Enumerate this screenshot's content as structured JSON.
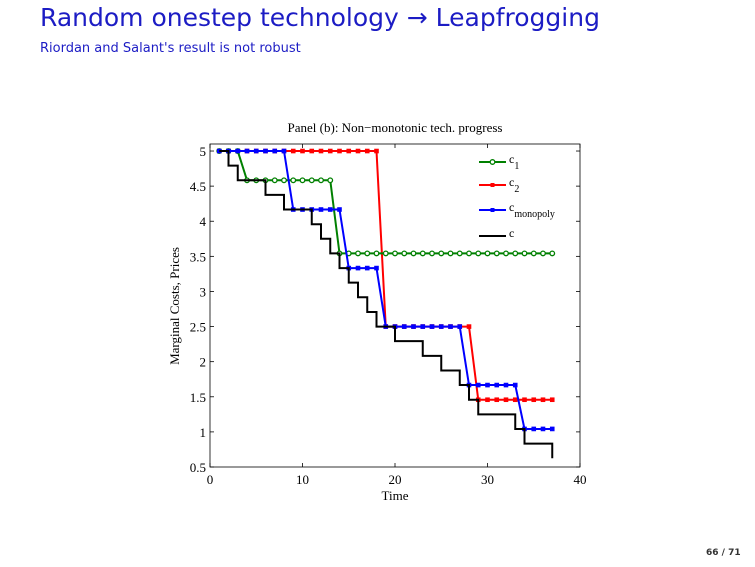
{
  "slide": {
    "title": "Random onestep technology → Leapfrogging",
    "subtitle": "Riordan and Salant's result is not robust",
    "page_number": "66 / 71"
  },
  "chart_data": {
    "type": "line",
    "title": "Panel (b): Non−monotonic tech. progress",
    "xlabel": "Time",
    "ylabel": "Marginal Costs, Prices",
    "xlim": [
      0,
      40
    ],
    "ylim": [
      0.5,
      5.1
    ],
    "xticks": [
      0,
      10,
      20,
      30,
      40
    ],
    "xtick_labels": [
      "0",
      "10",
      "20",
      "30",
      "40"
    ],
    "yticks": [
      0.5,
      1,
      1.5,
      2,
      2.5,
      3,
      3.5,
      4,
      4.5,
      5
    ],
    "ytick_labels": [
      "0.5",
      "1",
      "1.5",
      "2",
      "2.5",
      "3",
      "3.5",
      "4",
      "4.5",
      "5"
    ],
    "grid": false,
    "legend_position": "top-right",
    "x": [
      1,
      2,
      3,
      4,
      5,
      6,
      7,
      8,
      9,
      10,
      11,
      12,
      13,
      14,
      15,
      16,
      17,
      18,
      19,
      20,
      21,
      22,
      23,
      24,
      25,
      26,
      27,
      28,
      29,
      30,
      31,
      32,
      33,
      34,
      35,
      36,
      37
    ],
    "series": [
      {
        "name": "c1",
        "label_main": "c",
        "label_sub": "1",
        "color": "#008000",
        "marker": "circle",
        "style": "line",
        "values": [
          5,
          5,
          5,
          4.583,
          4.583,
          4.583,
          4.583,
          4.583,
          4.583,
          4.583,
          4.583,
          4.583,
          4.583,
          3.542,
          3.542,
          3.542,
          3.542,
          3.542,
          3.542,
          3.542,
          3.542,
          3.542,
          3.542,
          3.542,
          3.542,
          3.542,
          3.542,
          3.542,
          3.542,
          3.542,
          3.542,
          3.542,
          3.542,
          3.542,
          3.542,
          3.542,
          3.542
        ]
      },
      {
        "name": "c2",
        "label_main": "c",
        "label_sub": "2",
        "color": "#ff0000",
        "marker": "square",
        "style": "line",
        "values": [
          5,
          5,
          5,
          5,
          5,
          5,
          5,
          5,
          5,
          5,
          5,
          5,
          5,
          5,
          5,
          5,
          5,
          5,
          2.5,
          2.5,
          2.5,
          2.5,
          2.5,
          2.5,
          2.5,
          2.5,
          2.5,
          2.5,
          1.458,
          1.458,
          1.458,
          1.458,
          1.458,
          1.458,
          1.458,
          1.458,
          1.458
        ]
      },
      {
        "name": "cmonopoly",
        "label_main": "c",
        "label_sub": "monopoly",
        "color": "#0000ff",
        "marker": "square",
        "style": "line",
        "values": [
          5,
          5,
          5,
          5,
          5,
          5,
          5,
          5,
          4.167,
          4.167,
          4.167,
          4.167,
          4.167,
          4.167,
          3.333,
          3.333,
          3.333,
          3.333,
          2.5,
          2.5,
          2.5,
          2.5,
          2.5,
          2.5,
          2.5,
          2.5,
          2.5,
          1.667,
          1.667,
          1.667,
          1.667,
          1.667,
          1.667,
          1.042,
          1.042,
          1.042,
          1.042
        ]
      },
      {
        "name": "c",
        "label_main": "c",
        "label_sub": "",
        "color": "#000000",
        "marker": "none",
        "style": "stairs",
        "values": [
          5,
          4.792,
          4.583,
          4.583,
          4.583,
          4.375,
          4.375,
          4.167,
          4.167,
          4.167,
          3.958,
          3.75,
          3.542,
          3.333,
          3.125,
          2.917,
          2.708,
          2.5,
          2.5,
          2.292,
          2.292,
          2.292,
          2.083,
          2.083,
          1.875,
          1.875,
          1.667,
          1.458,
          1.25,
          1.25,
          1.25,
          1.25,
          1.042,
          0.833,
          0.833,
          0.833,
          0.625
        ]
      }
    ]
  }
}
